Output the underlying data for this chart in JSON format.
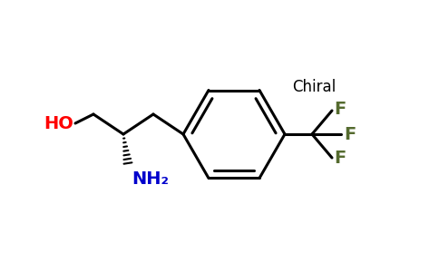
{
  "background": "#ffffff",
  "bond_color": "#000000",
  "ho_color": "#ff0000",
  "nh2_color": "#0000cc",
  "f_chiral_color": "#556b2f",
  "chiral_label": "Chiral",
  "ho_label": "HO",
  "nh2_label": "NH₂",
  "f_label": "F",
  "line_width": 2.2,
  "font_size_labels": 14,
  "font_size_chiral": 12
}
